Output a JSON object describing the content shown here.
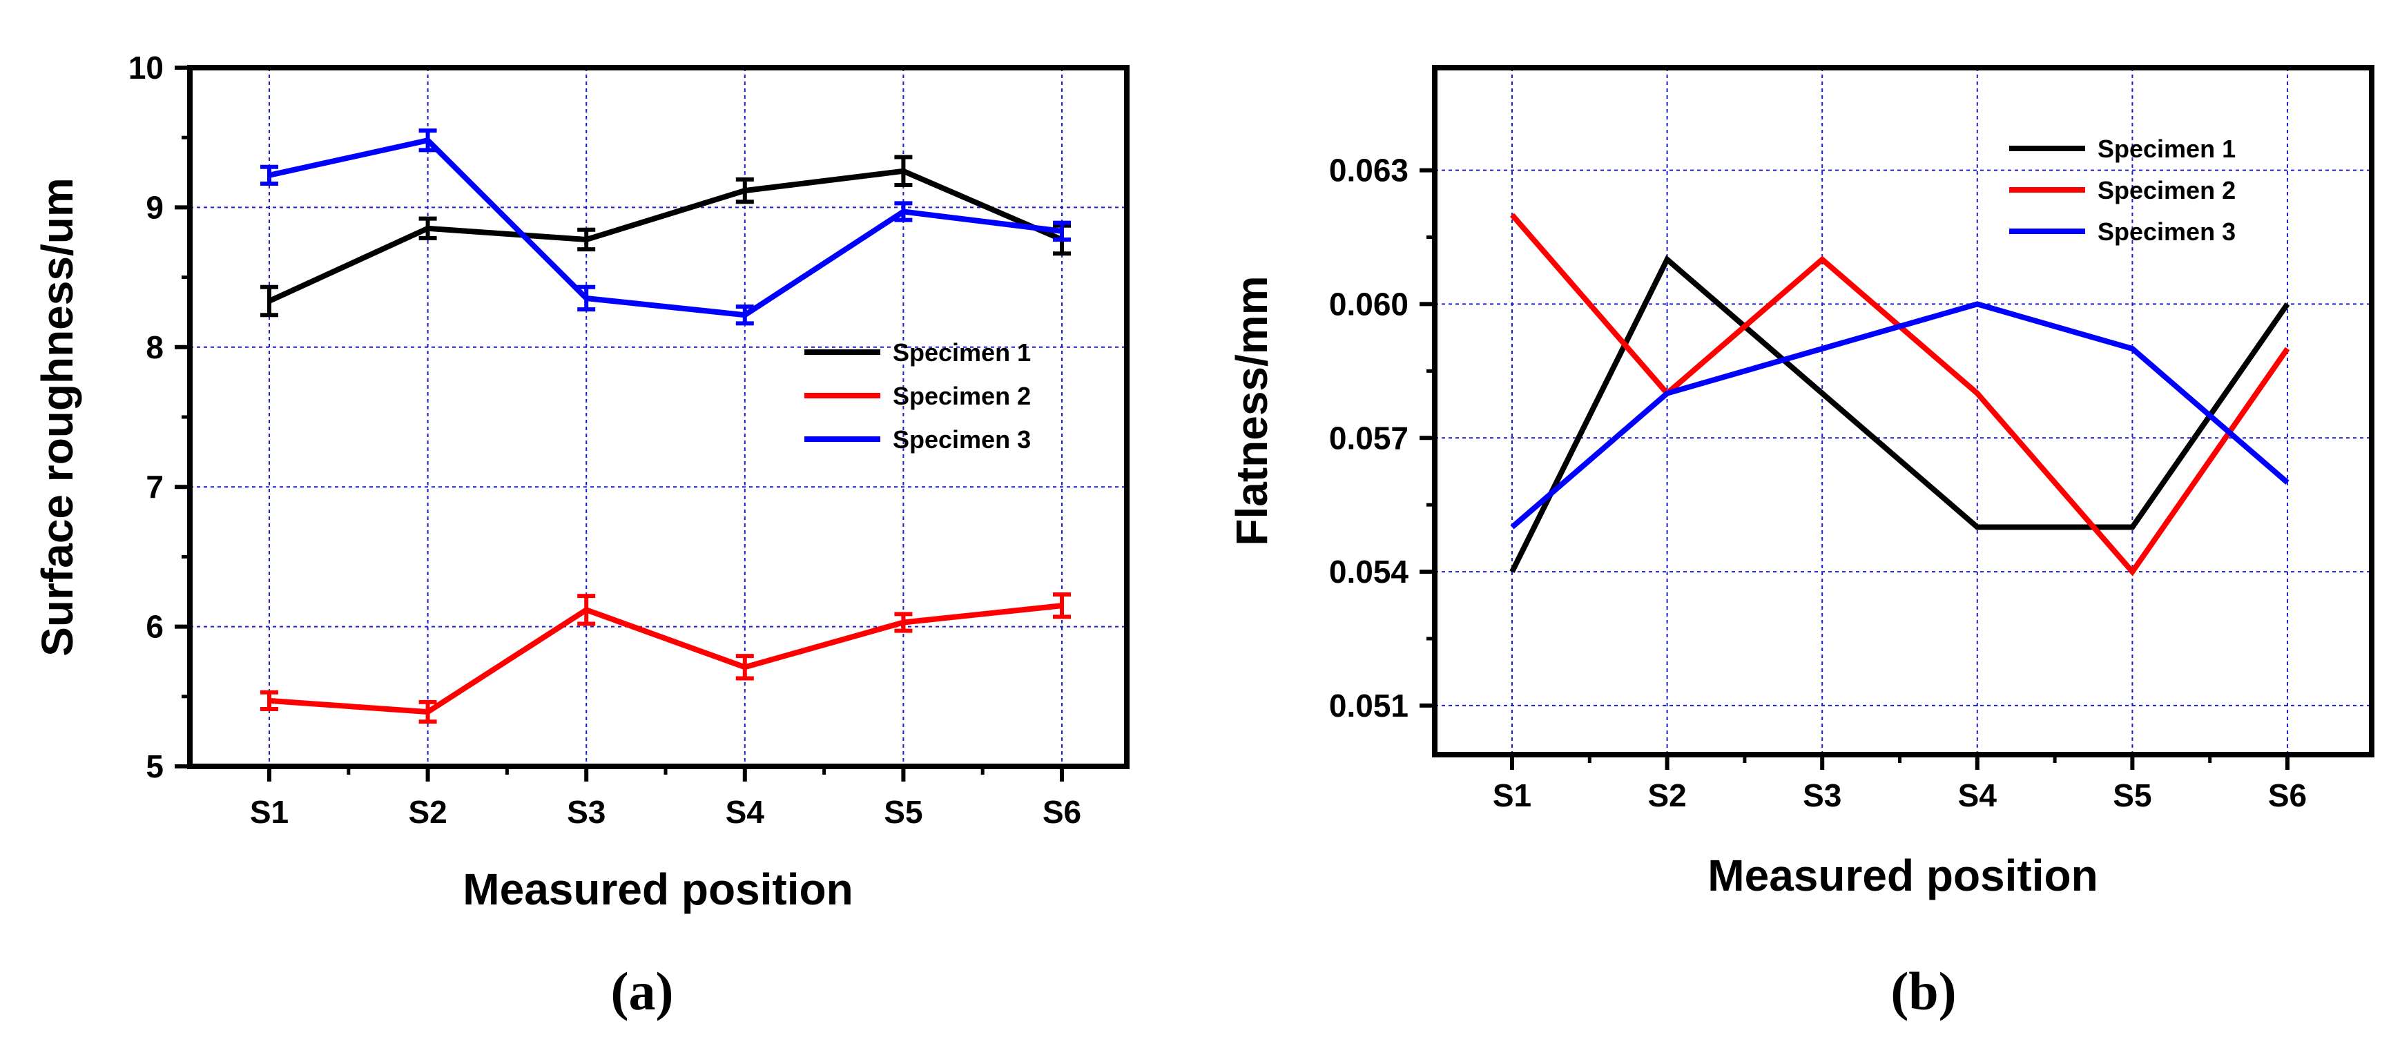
{
  "chart_data": [
    {
      "type": "line",
      "panel_label": "(a)",
      "xlabel": "Measured position",
      "ylabel": "Surface roughness/um",
      "categories": [
        "S1",
        "S2",
        "S3",
        "S4",
        "S5",
        "S6"
      ],
      "ylim": [
        5,
        10
      ],
      "yticks": [
        5,
        6,
        7,
        8,
        9,
        10
      ],
      "ytick_labels": [
        "5",
        "6",
        "7",
        "8",
        "9",
        "10"
      ],
      "grid": true,
      "legend_position": "center-right",
      "series": [
        {
          "name": "Specimen 1",
          "color": "#000000",
          "values": [
            8.33,
            8.85,
            8.77,
            9.12,
            9.26,
            8.77
          ],
          "errors": [
            0.1,
            0.07,
            0.07,
            0.08,
            0.1,
            0.1
          ]
        },
        {
          "name": "Specimen 2",
          "color": "#ff0000",
          "values": [
            5.47,
            5.39,
            6.12,
            5.71,
            6.03,
            6.15
          ],
          "errors": [
            0.06,
            0.07,
            0.1,
            0.08,
            0.06,
            0.08
          ]
        },
        {
          "name": "Specimen 3",
          "color": "#0000ff",
          "values": [
            9.23,
            9.48,
            8.35,
            8.23,
            8.97,
            8.83
          ],
          "errors": [
            0.06,
            0.07,
            0.08,
            0.06,
            0.06,
            0.06
          ]
        }
      ]
    },
    {
      "type": "line",
      "panel_label": "(b)",
      "xlabel": "Measured position",
      "ylabel": "Flatness/mm",
      "categories": [
        "S1",
        "S2",
        "S3",
        "S4",
        "S5",
        "S6"
      ],
      "ylim": [
        0.0499,
        0.0653
      ],
      "yticks": [
        0.051,
        0.054,
        0.057,
        0.06,
        0.063
      ],
      "ytick_labels": [
        "0.051",
        "0.054",
        "0.057",
        "0.060",
        "0.063"
      ],
      "grid": true,
      "legend_position": "top-right",
      "series": [
        {
          "name": "Specimen 1",
          "color": "#000000",
          "values": [
            0.054,
            0.061,
            0.058,
            0.055,
            0.055,
            0.06
          ]
        },
        {
          "name": "Specimen 2",
          "color": "#ff0000",
          "values": [
            0.062,
            0.058,
            0.061,
            0.058,
            0.054,
            0.059
          ]
        },
        {
          "name": "Specimen 3",
          "color": "#0000ff",
          "values": [
            0.055,
            0.058,
            0.059,
            0.06,
            0.059,
            0.056
          ]
        }
      ]
    }
  ]
}
